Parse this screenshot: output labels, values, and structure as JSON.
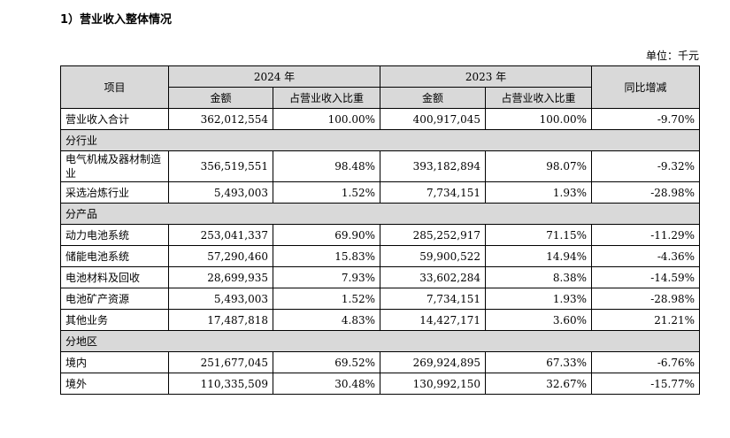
{
  "heading": "1）营业收入整体情况",
  "unit": "单位：千元",
  "header": {
    "item": "项目",
    "y2024": "2024 年",
    "y2023": "2023 年",
    "amount": "金额",
    "share": "占营业收入比重",
    "yoy": "同比增减"
  },
  "rows": [
    {
      "type": "data",
      "name": "营业收入合计",
      "a24": "362,012,554",
      "s24": "100.00%",
      "a23": "400,917,045",
      "s23": "100.00%",
      "yoy": "-9.70%"
    },
    {
      "type": "section",
      "name": "分行业"
    },
    {
      "type": "data",
      "name": "电气机械及器材制造业",
      "a24": "356,519,551",
      "s24": "98.48%",
      "a23": "393,182,894",
      "s23": "98.07%",
      "yoy": "-9.32%",
      "tall": true
    },
    {
      "type": "data",
      "name": "采选冶炼行业",
      "a24": "5,493,003",
      "s24": "1.52%",
      "a23": "7,734,151",
      "s23": "1.93%",
      "yoy": "-28.98%"
    },
    {
      "type": "section",
      "name": "分产品"
    },
    {
      "type": "data",
      "name": "动力电池系统",
      "a24": "253,041,337",
      "s24": "69.90%",
      "a23": "285,252,917",
      "s23": "71.15%",
      "yoy": "-11.29%"
    },
    {
      "type": "data",
      "name": "储能电池系统",
      "a24": "57,290,460",
      "s24": "15.83%",
      "a23": "59,900,522",
      "s23": "14.94%",
      "yoy": "-4.36%"
    },
    {
      "type": "data",
      "name": "电池材料及回收",
      "a24": "28,699,935",
      "s24": "7.93%",
      "a23": "33,602,284",
      "s23": "8.38%",
      "yoy": "-14.59%"
    },
    {
      "type": "data",
      "name": "电池矿产资源",
      "a24": "5,493,003",
      "s24": "1.52%",
      "a23": "7,734,151",
      "s23": "1.93%",
      "yoy": "-28.98%"
    },
    {
      "type": "data",
      "name": "其他业务",
      "a24": "17,487,818",
      "s24": "4.83%",
      "a23": "14,427,171",
      "s23": "3.60%",
      "yoy": "21.21%"
    },
    {
      "type": "section",
      "name": "分地区"
    },
    {
      "type": "data",
      "name": "境内",
      "a24": "251,677,045",
      "s24": "69.52%",
      "a23": "269,924,895",
      "s23": "67.33%",
      "yoy": "-6.76%"
    },
    {
      "type": "data",
      "name": "境外",
      "a24": "110,335,509",
      "s24": "30.48%",
      "a23": "130,992,150",
      "s23": "32.67%",
      "yoy": "-15.77%"
    }
  ]
}
